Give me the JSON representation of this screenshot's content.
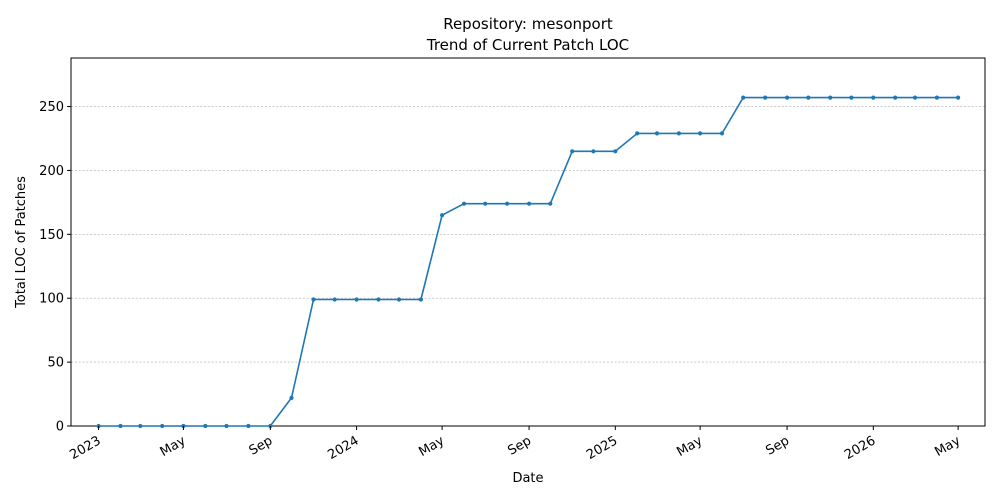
{
  "chart_data": {
    "type": "line",
    "title": "Repository: mesonport",
    "subtitle": "Trend of Current Patch LOC",
    "xlabel": "Date",
    "ylabel": "Total LOC of Patches",
    "ylim": [
      0,
      288
    ],
    "yticks": [
      0,
      50,
      100,
      150,
      200,
      250
    ],
    "xlim": [
      "2022-11-23",
      "2026-06-08"
    ],
    "xticks": [
      {
        "date": "2023-01-01",
        "label": "2023"
      },
      {
        "date": "2023-05-01",
        "label": "May"
      },
      {
        "date": "2023-09-01",
        "label": "Sep"
      },
      {
        "date": "2024-01-01",
        "label": "2024"
      },
      {
        "date": "2024-05-01",
        "label": "May"
      },
      {
        "date": "2024-09-01",
        "label": "Sep"
      },
      {
        "date": "2025-01-01",
        "label": "2025"
      },
      {
        "date": "2025-05-01",
        "label": "May"
      },
      {
        "date": "2025-09-01",
        "label": "Sep"
      },
      {
        "date": "2026-01-01",
        "label": "2026"
      },
      {
        "date": "2026-05-01",
        "label": "May"
      }
    ],
    "grid": "y-dashed",
    "color": "#1f77b4",
    "series": [
      {
        "x": [
          "2023-01-01",
          "2023-02-01",
          "2023-03-01",
          "2023-04-01",
          "2023-05-01",
          "2023-06-01",
          "2023-07-01",
          "2023-08-01",
          "2023-09-01",
          "2023-10-01",
          "2023-11-01",
          "2023-12-01",
          "2024-01-01",
          "2024-02-01",
          "2024-03-01",
          "2024-04-01",
          "2024-05-01",
          "2024-06-01",
          "2024-07-01",
          "2024-08-01",
          "2024-09-01",
          "2024-10-01",
          "2024-11-01",
          "2024-12-01",
          "2025-01-01",
          "2025-02-01",
          "2025-03-01",
          "2025-04-01",
          "2025-05-01",
          "2025-06-01",
          "2025-07-01",
          "2025-08-01",
          "2025-09-01",
          "2025-10-01",
          "2025-11-01",
          "2025-12-01",
          "2026-01-01",
          "2026-02-01",
          "2026-03-01",
          "2026-04-01",
          "2026-05-01"
        ],
        "values": [
          0,
          0,
          0,
          0,
          0,
          0,
          0,
          0,
          0,
          22,
          99,
          99,
          99,
          99,
          99,
          99,
          165,
          174,
          174,
          174,
          174,
          174,
          215,
          215,
          215,
          229,
          229,
          229,
          229,
          229,
          257,
          257,
          257,
          257,
          257,
          257,
          257,
          257,
          257,
          257,
          257
        ]
      }
    ]
  }
}
